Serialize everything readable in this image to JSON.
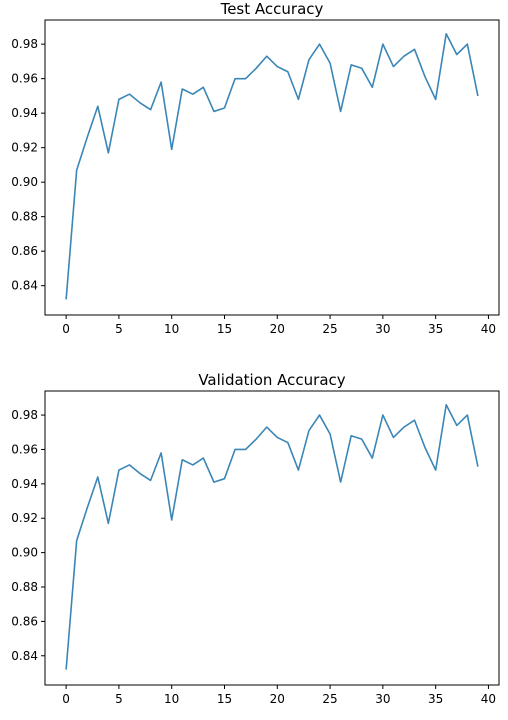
{
  "chart_data": [
    {
      "type": "line",
      "title": "Test Accuracy",
      "xlabel": "",
      "ylabel": "",
      "xlim": [
        -2,
        41
      ],
      "ylim": [
        0.823,
        0.994
      ],
      "xticks": [
        0,
        5,
        10,
        15,
        20,
        25,
        30,
        35,
        40
      ],
      "xtick_labels": [
        "0",
        "5",
        "10",
        "15",
        "20",
        "25",
        "30",
        "35",
        "40"
      ],
      "yticks": [
        0.84,
        0.86,
        0.88,
        0.9,
        0.92,
        0.94,
        0.96,
        0.98
      ],
      "ytick_labels": [
        "0.84",
        "0.86",
        "0.88",
        "0.90",
        "0.92",
        "0.94",
        "0.96",
        "0.98"
      ],
      "grid": false,
      "color": "#3a86b6",
      "series": [
        {
          "x": [
            0,
            1,
            2,
            3,
            4,
            5,
            6,
            7,
            8,
            9,
            10,
            11,
            12,
            13,
            14,
            15,
            16,
            17,
            18,
            19,
            20,
            21,
            22,
            23,
            24,
            25,
            26,
            27,
            28,
            29,
            30,
            31,
            32,
            33,
            34,
            35,
            36,
            37,
            38,
            39
          ],
          "values": [
            0.832,
            0.907,
            0.926,
            0.944,
            0.917,
            0.948,
            0.951,
            0.946,
            0.942,
            0.958,
            0.919,
            0.954,
            0.951,
            0.955,
            0.941,
            0.943,
            0.96,
            0.96,
            0.966,
            0.973,
            0.967,
            0.964,
            0.948,
            0.971,
            0.98,
            0.969,
            0.941,
            0.968,
            0.966,
            0.955,
            0.98,
            0.967,
            0.973,
            0.977,
            0.961,
            0.948,
            0.986,
            0.974,
            0.98,
            0.95
          ]
        }
      ]
    },
    {
      "type": "line",
      "title": "Validation Accuracy",
      "xlabel": "",
      "ylabel": "",
      "xlim": [
        -2,
        41
      ],
      "ylim": [
        0.823,
        0.994
      ],
      "xticks": [
        0,
        5,
        10,
        15,
        20,
        25,
        30,
        35,
        40
      ],
      "xtick_labels": [
        "0",
        "5",
        "10",
        "15",
        "20",
        "25",
        "30",
        "35",
        "40"
      ],
      "yticks": [
        0.84,
        0.86,
        0.88,
        0.9,
        0.92,
        0.94,
        0.96,
        0.98
      ],
      "ytick_labels": [
        "0.84",
        "0.86",
        "0.88",
        "0.90",
        "0.92",
        "0.94",
        "0.96",
        "0.98"
      ],
      "grid": false,
      "color": "#3a86b6",
      "series": [
        {
          "x": [
            0,
            1,
            2,
            3,
            4,
            5,
            6,
            7,
            8,
            9,
            10,
            11,
            12,
            13,
            14,
            15,
            16,
            17,
            18,
            19,
            20,
            21,
            22,
            23,
            24,
            25,
            26,
            27,
            28,
            29,
            30,
            31,
            32,
            33,
            34,
            35,
            36,
            37,
            38,
            39
          ],
          "values": [
            0.832,
            0.907,
            0.926,
            0.944,
            0.917,
            0.948,
            0.951,
            0.946,
            0.942,
            0.958,
            0.919,
            0.954,
            0.951,
            0.955,
            0.941,
            0.943,
            0.96,
            0.96,
            0.966,
            0.973,
            0.967,
            0.964,
            0.948,
            0.971,
            0.98,
            0.969,
            0.941,
            0.968,
            0.966,
            0.955,
            0.98,
            0.967,
            0.973,
            0.977,
            0.961,
            0.948,
            0.986,
            0.974,
            0.98,
            0.95
          ]
        }
      ]
    }
  ]
}
